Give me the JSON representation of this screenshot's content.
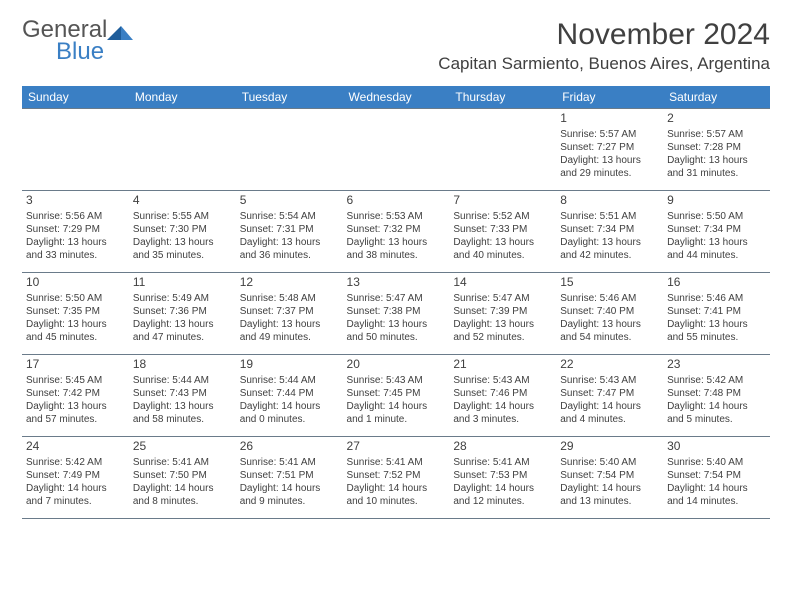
{
  "brand": {
    "line1": "General",
    "line2": "Blue"
  },
  "title": "November 2024",
  "location": "Capitan Sarmiento, Buenos Aires, Argentina",
  "colors": {
    "header_bg": "#3a7fc4",
    "header_text": "#ffffff",
    "text": "#404040",
    "border": "#6a7b8a",
    "logo_gray": "#555555",
    "logo_blue": "#3a7fc4",
    "page_bg": "#ffffff"
  },
  "day_headers": [
    "Sunday",
    "Monday",
    "Tuesday",
    "Wednesday",
    "Thursday",
    "Friday",
    "Saturday"
  ],
  "weeks": [
    [
      {
        "day": "",
        "sunrise": "",
        "sunset": "",
        "daylight": ""
      },
      {
        "day": "",
        "sunrise": "",
        "sunset": "",
        "daylight": ""
      },
      {
        "day": "",
        "sunrise": "",
        "sunset": "",
        "daylight": ""
      },
      {
        "day": "",
        "sunrise": "",
        "sunset": "",
        "daylight": ""
      },
      {
        "day": "",
        "sunrise": "",
        "sunset": "",
        "daylight": ""
      },
      {
        "day": "1",
        "sunrise": "Sunrise: 5:57 AM",
        "sunset": "Sunset: 7:27 PM",
        "daylight": "Daylight: 13 hours and 29 minutes."
      },
      {
        "day": "2",
        "sunrise": "Sunrise: 5:57 AM",
        "sunset": "Sunset: 7:28 PM",
        "daylight": "Daylight: 13 hours and 31 minutes."
      }
    ],
    [
      {
        "day": "3",
        "sunrise": "Sunrise: 5:56 AM",
        "sunset": "Sunset: 7:29 PM",
        "daylight": "Daylight: 13 hours and 33 minutes."
      },
      {
        "day": "4",
        "sunrise": "Sunrise: 5:55 AM",
        "sunset": "Sunset: 7:30 PM",
        "daylight": "Daylight: 13 hours and 35 minutes."
      },
      {
        "day": "5",
        "sunrise": "Sunrise: 5:54 AM",
        "sunset": "Sunset: 7:31 PM",
        "daylight": "Daylight: 13 hours and 36 minutes."
      },
      {
        "day": "6",
        "sunrise": "Sunrise: 5:53 AM",
        "sunset": "Sunset: 7:32 PM",
        "daylight": "Daylight: 13 hours and 38 minutes."
      },
      {
        "day": "7",
        "sunrise": "Sunrise: 5:52 AM",
        "sunset": "Sunset: 7:33 PM",
        "daylight": "Daylight: 13 hours and 40 minutes."
      },
      {
        "day": "8",
        "sunrise": "Sunrise: 5:51 AM",
        "sunset": "Sunset: 7:34 PM",
        "daylight": "Daylight: 13 hours and 42 minutes."
      },
      {
        "day": "9",
        "sunrise": "Sunrise: 5:50 AM",
        "sunset": "Sunset: 7:34 PM",
        "daylight": "Daylight: 13 hours and 44 minutes."
      }
    ],
    [
      {
        "day": "10",
        "sunrise": "Sunrise: 5:50 AM",
        "sunset": "Sunset: 7:35 PM",
        "daylight": "Daylight: 13 hours and 45 minutes."
      },
      {
        "day": "11",
        "sunrise": "Sunrise: 5:49 AM",
        "sunset": "Sunset: 7:36 PM",
        "daylight": "Daylight: 13 hours and 47 minutes."
      },
      {
        "day": "12",
        "sunrise": "Sunrise: 5:48 AM",
        "sunset": "Sunset: 7:37 PM",
        "daylight": "Daylight: 13 hours and 49 minutes."
      },
      {
        "day": "13",
        "sunrise": "Sunrise: 5:47 AM",
        "sunset": "Sunset: 7:38 PM",
        "daylight": "Daylight: 13 hours and 50 minutes."
      },
      {
        "day": "14",
        "sunrise": "Sunrise: 5:47 AM",
        "sunset": "Sunset: 7:39 PM",
        "daylight": "Daylight: 13 hours and 52 minutes."
      },
      {
        "day": "15",
        "sunrise": "Sunrise: 5:46 AM",
        "sunset": "Sunset: 7:40 PM",
        "daylight": "Daylight: 13 hours and 54 minutes."
      },
      {
        "day": "16",
        "sunrise": "Sunrise: 5:46 AM",
        "sunset": "Sunset: 7:41 PM",
        "daylight": "Daylight: 13 hours and 55 minutes."
      }
    ],
    [
      {
        "day": "17",
        "sunrise": "Sunrise: 5:45 AM",
        "sunset": "Sunset: 7:42 PM",
        "daylight": "Daylight: 13 hours and 57 minutes."
      },
      {
        "day": "18",
        "sunrise": "Sunrise: 5:44 AM",
        "sunset": "Sunset: 7:43 PM",
        "daylight": "Daylight: 13 hours and 58 minutes."
      },
      {
        "day": "19",
        "sunrise": "Sunrise: 5:44 AM",
        "sunset": "Sunset: 7:44 PM",
        "daylight": "Daylight: 14 hours and 0 minutes."
      },
      {
        "day": "20",
        "sunrise": "Sunrise: 5:43 AM",
        "sunset": "Sunset: 7:45 PM",
        "daylight": "Daylight: 14 hours and 1 minute."
      },
      {
        "day": "21",
        "sunrise": "Sunrise: 5:43 AM",
        "sunset": "Sunset: 7:46 PM",
        "daylight": "Daylight: 14 hours and 3 minutes."
      },
      {
        "day": "22",
        "sunrise": "Sunrise: 5:43 AM",
        "sunset": "Sunset: 7:47 PM",
        "daylight": "Daylight: 14 hours and 4 minutes."
      },
      {
        "day": "23",
        "sunrise": "Sunrise: 5:42 AM",
        "sunset": "Sunset: 7:48 PM",
        "daylight": "Daylight: 14 hours and 5 minutes."
      }
    ],
    [
      {
        "day": "24",
        "sunrise": "Sunrise: 5:42 AM",
        "sunset": "Sunset: 7:49 PM",
        "daylight": "Daylight: 14 hours and 7 minutes."
      },
      {
        "day": "25",
        "sunrise": "Sunrise: 5:41 AM",
        "sunset": "Sunset: 7:50 PM",
        "daylight": "Daylight: 14 hours and 8 minutes."
      },
      {
        "day": "26",
        "sunrise": "Sunrise: 5:41 AM",
        "sunset": "Sunset: 7:51 PM",
        "daylight": "Daylight: 14 hours and 9 minutes."
      },
      {
        "day": "27",
        "sunrise": "Sunrise: 5:41 AM",
        "sunset": "Sunset: 7:52 PM",
        "daylight": "Daylight: 14 hours and 10 minutes."
      },
      {
        "day": "28",
        "sunrise": "Sunrise: 5:41 AM",
        "sunset": "Sunset: 7:53 PM",
        "daylight": "Daylight: 14 hours and 12 minutes."
      },
      {
        "day": "29",
        "sunrise": "Sunrise: 5:40 AM",
        "sunset": "Sunset: 7:54 PM",
        "daylight": "Daylight: 14 hours and 13 minutes."
      },
      {
        "day": "30",
        "sunrise": "Sunrise: 5:40 AM",
        "sunset": "Sunset: 7:54 PM",
        "daylight": "Daylight: 14 hours and 14 minutes."
      }
    ]
  ]
}
